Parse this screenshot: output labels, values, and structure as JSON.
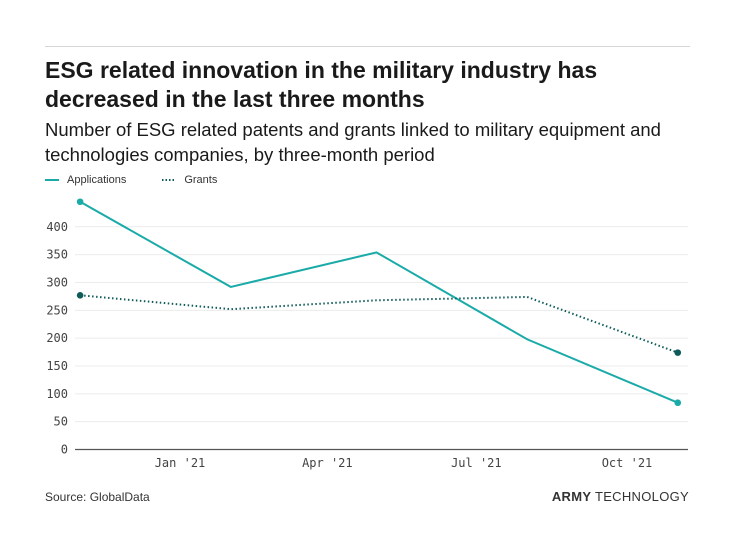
{
  "title": "ESG related innovation in the military industry has decreased in the last three months",
  "subtitle": "Number of ESG related patents and grants linked to military equipment and technologies companies, by three-month period",
  "source": "Source: GlobalData",
  "brand": {
    "bold": "ARMY",
    "light": " TECHNOLOGY"
  },
  "chart_data": {
    "type": "line",
    "x": [
      "2020-11-01",
      "2021-02-01",
      "2021-05-01",
      "2021-08-01",
      "2021-11-01"
    ],
    "series": [
      {
        "name": "Applications",
        "values": [
          445,
          292,
          354,
          198,
          84
        ],
        "color": "#1aaba8",
        "style": "solid"
      },
      {
        "name": "Grants",
        "values": [
          277,
          252,
          268,
          274,
          174
        ],
        "color": "#0e5c5a",
        "style": "dotted"
      }
    ],
    "yticks": [
      "0",
      "50",
      "100",
      "150",
      "200",
      "250",
      "300",
      "350",
      "400"
    ],
    "ylim": [
      0,
      450
    ],
    "xticks": [
      {
        "date": "2021-01-01",
        "label": "Jan '21"
      },
      {
        "date": "2021-04-01",
        "label": "Apr '21"
      },
      {
        "date": "2021-07-01",
        "label": "Jul '21"
      },
      {
        "date": "2021-10-01",
        "label": "Oct '21"
      }
    ],
    "grid": true,
    "legend": "top-left"
  }
}
